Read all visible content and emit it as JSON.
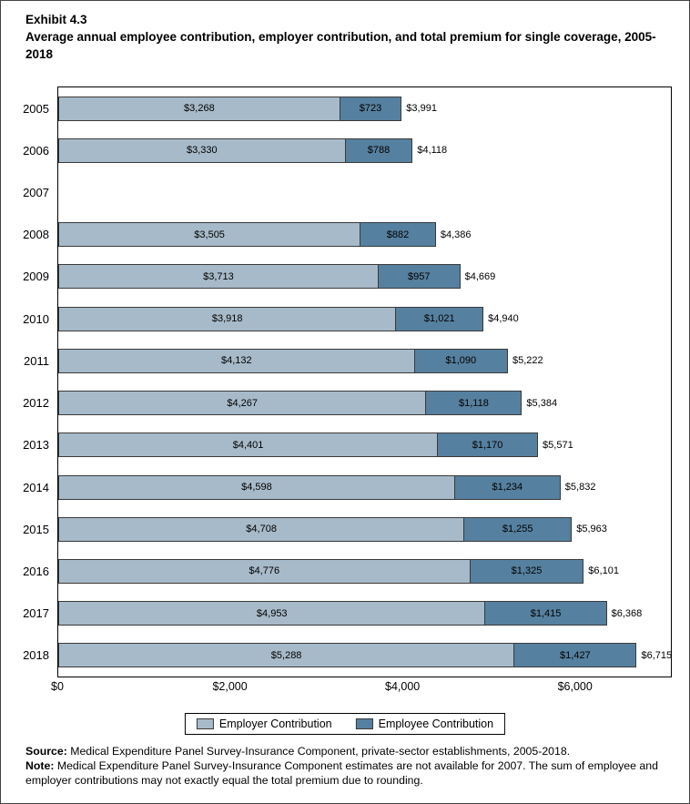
{
  "title": {
    "exhibit": "Exhibit 4.3",
    "text": "Average annual employee contribution, employer contribution, and total premium for single coverage, 2005-2018"
  },
  "chart_data": {
    "type": "bar",
    "orientation": "horizontal",
    "stacked": true,
    "title": "Average annual employee contribution, employer contribution, and total premium for single coverage, 2005-2018",
    "categories": [
      "2005",
      "2006",
      "2007",
      "2008",
      "2009",
      "2010",
      "2011",
      "2012",
      "2013",
      "2014",
      "2015",
      "2016",
      "2017",
      "2018"
    ],
    "series": [
      {
        "name": "Employer Contribution",
        "color": "#a7bac9",
        "values": [
          3268,
          3330,
          null,
          3505,
          3713,
          3918,
          4132,
          4267,
          4401,
          4598,
          4708,
          4776,
          4953,
          5288
        ]
      },
      {
        "name": "Employee Contribution",
        "color": "#56809f",
        "values": [
          723,
          788,
          null,
          882,
          957,
          1021,
          1090,
          1118,
          1170,
          1234,
          1255,
          1325,
          1415,
          1427
        ]
      }
    ],
    "totals": [
      3991,
      4118,
      null,
      4386,
      4669,
      4940,
      5222,
      5384,
      5571,
      5832,
      5963,
      6101,
      6368,
      6715
    ],
    "x_axis": {
      "ticks": [
        "$0",
        "$2,000",
        "$4,000",
        "$6,000"
      ],
      "tick_values": [
        0,
        2000,
        4000,
        6000
      ],
      "max": 7100
    },
    "legend_position": "bottom",
    "grid": false,
    "note_missing_year": "2007"
  },
  "footer": {
    "source_label": "Source:",
    "source_text": " Medical Expenditure Panel Survey-Insurance Component, private-sector establishments, 2005-2018.",
    "note_label": "Note:",
    "note_text": " Medical Expenditure Panel Survey-Insurance Component estimates are not available for 2007. The sum of employee and employer contributions may not exactly equal the total premium due to rounding."
  }
}
